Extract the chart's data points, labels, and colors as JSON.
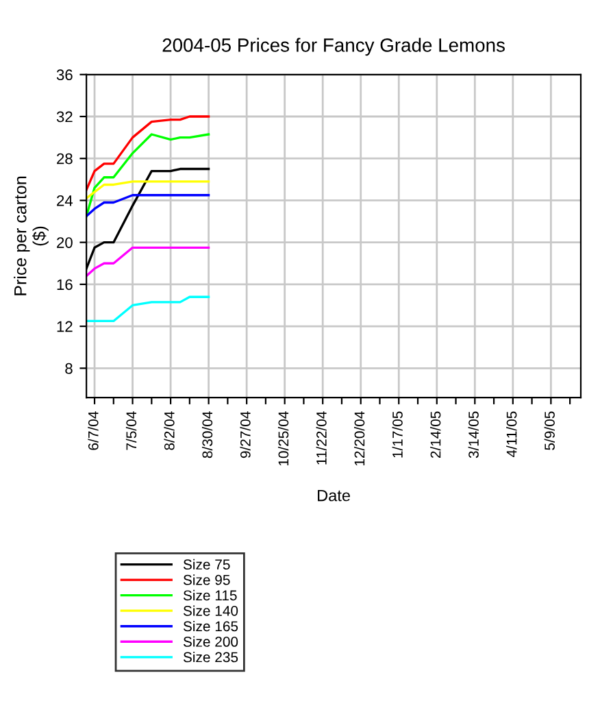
{
  "chart_data": {
    "type": "line",
    "title": "2004-05 Prices for Fancy Grade Lemons",
    "xlabel": "Date",
    "ylabel": "Price per carton\n($)",
    "x": [
      "2004-06-01",
      "2004-06-07",
      "2004-06-14",
      "2004-06-21",
      "2004-07-05",
      "2004-07-19",
      "2004-08-02",
      "2004-08-09",
      "2004-08-16",
      "2004-08-30"
    ],
    "series": [
      {
        "name": "Size 75",
        "color": "#000000",
        "values": [
          17.5,
          19.5,
          20,
          20,
          23.5,
          26.8,
          26.8,
          27,
          27,
          27
        ]
      },
      {
        "name": "Size 95",
        "color": "#ff0000",
        "values": [
          25,
          26.8,
          27.5,
          27.5,
          30,
          31.5,
          31.7,
          31.7,
          32,
          32
        ]
      },
      {
        "name": "Size 115",
        "color": "#00ff00",
        "values": [
          22.5,
          25.2,
          26.2,
          26.2,
          28.5,
          30.3,
          29.8,
          30,
          30,
          30.3
        ]
      },
      {
        "name": "Size 140",
        "color": "#ffff00",
        "values": [
          24.2,
          24.8,
          25.5,
          25.5,
          25.8,
          25.8,
          25.8,
          25.8,
          25.8,
          25.8
        ]
      },
      {
        "name": "Size 165",
        "color": "#0000ff",
        "values": [
          22.5,
          23.2,
          23.8,
          23.8,
          24.5,
          24.5,
          24.5,
          24.5,
          24.5,
          24.5
        ]
      },
      {
        "name": "Size 200",
        "color": "#ff00ff",
        "values": [
          16.8,
          17.5,
          18,
          18,
          19.5,
          19.5,
          19.5,
          19.5,
          19.5,
          19.5
        ]
      },
      {
        "name": "Size 235",
        "color": "#00ffff",
        "values": [
          12.5,
          12.5,
          12.5,
          12.5,
          14,
          14.3,
          14.3,
          14.3,
          14.8,
          14.8
        ]
      }
    ],
    "xlim": [
      "2004-06-01",
      "2005-05-31"
    ],
    "xticks": [
      {
        "value": "2004-06-07",
        "label": "6/7/04"
      },
      {
        "value": "2004-06-21",
        "label": null
      },
      {
        "value": "2004-07-05",
        "label": "7/5/04"
      },
      {
        "value": "2004-07-19",
        "label": null
      },
      {
        "value": "2004-08-02",
        "label": "8/2/04"
      },
      {
        "value": "2004-08-16",
        "label": null
      },
      {
        "value": "2004-08-30",
        "label": "8/30/04"
      },
      {
        "value": "2004-09-13",
        "label": null
      },
      {
        "value": "2004-09-27",
        "label": "9/27/04"
      },
      {
        "value": "2004-10-11",
        "label": null
      },
      {
        "value": "2004-10-25",
        "label": "10/25/04"
      },
      {
        "value": "2004-11-08",
        "label": null
      },
      {
        "value": "2004-11-22",
        "label": "11/22/04"
      },
      {
        "value": "2004-12-06",
        "label": null
      },
      {
        "value": "2004-12-20",
        "label": "12/20/04"
      },
      {
        "value": "2005-01-03",
        "label": null
      },
      {
        "value": "2005-01-17",
        "label": "1/17/05"
      },
      {
        "value": "2005-01-31",
        "label": null
      },
      {
        "value": "2005-02-14",
        "label": "2/14/05"
      },
      {
        "value": "2005-02-28",
        "label": null
      },
      {
        "value": "2005-03-14",
        "label": "3/14/05"
      },
      {
        "value": "2005-03-28",
        "label": null
      },
      {
        "value": "2005-04-11",
        "label": "4/11/05"
      },
      {
        "value": "2005-04-25",
        "label": null
      },
      {
        "value": "2005-05-09",
        "label": "5/9/05"
      },
      {
        "value": "2005-05-23",
        "label": null
      }
    ],
    "ylim": [
      5.2,
      36
    ],
    "yticks": [
      8,
      12,
      16,
      20,
      24,
      28,
      32,
      36
    ],
    "grid": true,
    "legend": "bottom"
  }
}
